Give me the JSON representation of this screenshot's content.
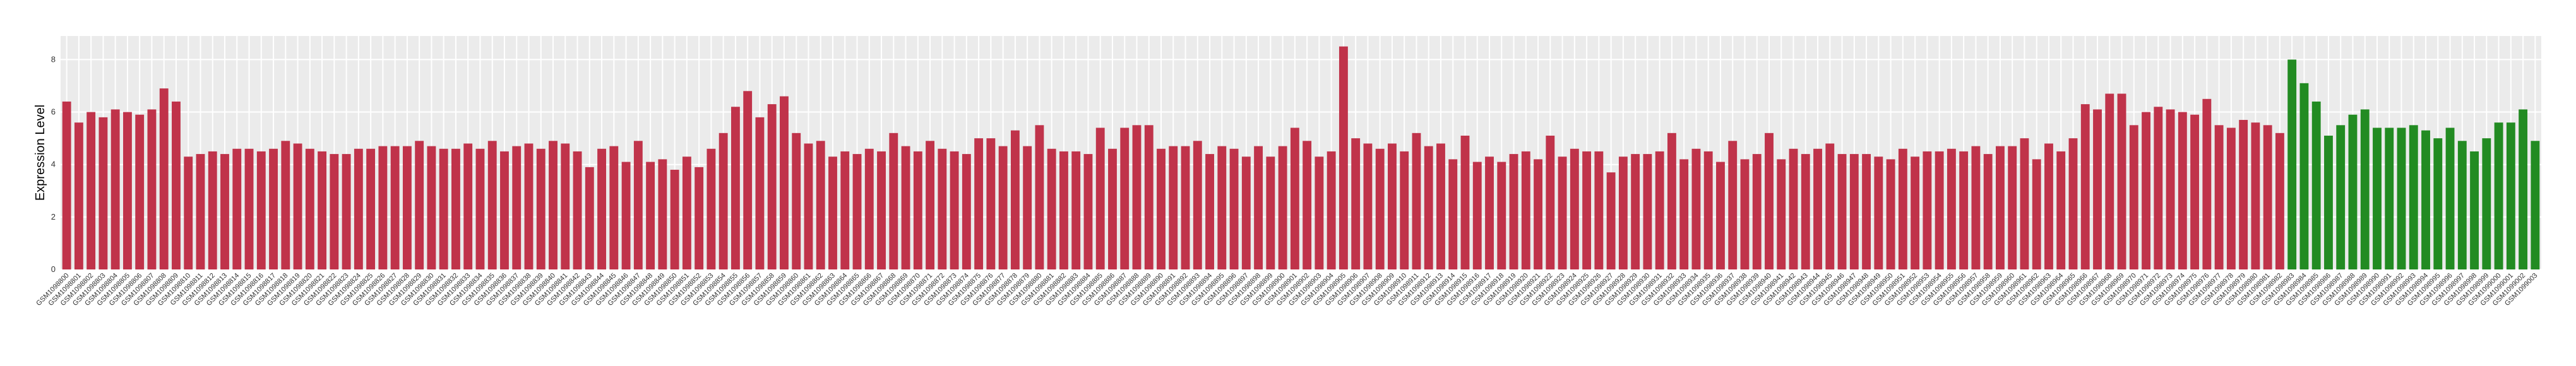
{
  "chart_data": {
    "type": "bar",
    "ylabel": "Expression Level",
    "ylim": [
      0,
      8.9
    ],
    "yticks": [
      0,
      2,
      4,
      6,
      8
    ],
    "grid": true,
    "groups": [
      {
        "color": "#c0334a",
        "categories": [
          "GSM1098800",
          "GSM1098801",
          "GSM1098802",
          "GSM1098803",
          "GSM1098804",
          "GSM1098805",
          "GSM1098806",
          "GSM1098807",
          "GSM1098808",
          "GSM1098809",
          "GSM1098810",
          "GSM1098811",
          "GSM1098812",
          "GSM1098813",
          "GSM1098814",
          "GSM1098815",
          "GSM1098816",
          "GSM1098817",
          "GSM1098818",
          "GSM1098819",
          "GSM1098820",
          "GSM1098821",
          "GSM1098822",
          "GSM1098823",
          "GSM1098824",
          "GSM1098825",
          "GSM1098826",
          "GSM1098827",
          "GSM1098828",
          "GSM1098829",
          "GSM1098830",
          "GSM1098831",
          "GSM1098832",
          "GSM1098833",
          "GSM1098834",
          "GSM1098835",
          "GSM1098836",
          "GSM1098837",
          "GSM1098838",
          "GSM1098839",
          "GSM1098840",
          "GSM1098841",
          "GSM1098842",
          "GSM1098843",
          "GSM1098844",
          "GSM1098845",
          "GSM1098846",
          "GSM1098847",
          "GSM1098848",
          "GSM1098849",
          "GSM1098850",
          "GSM1098851",
          "GSM1098852",
          "GSM1098853",
          "GSM1098854",
          "GSM1098855",
          "GSM1098856",
          "GSM1098857",
          "GSM1098858",
          "GSM1098859",
          "GSM1098860",
          "GSM1098861",
          "GSM1098862",
          "GSM1098863",
          "GSM1098864",
          "GSM1098865",
          "GSM1098866",
          "GSM1098867",
          "GSM1098868",
          "GSM1098869",
          "GSM1098870",
          "GSM1098871",
          "GSM1098872",
          "GSM1098873",
          "GSM1098874",
          "GSM1098875",
          "GSM1098876",
          "GSM1098877",
          "GSM1098878",
          "GSM1098879",
          "GSM1098880",
          "GSM1098881",
          "GSM1098882",
          "GSM1098883",
          "GSM1098884",
          "GSM1098885",
          "GSM1098886",
          "GSM1098887",
          "GSM1098888",
          "GSM1098889",
          "GSM1098890",
          "GSM1098891",
          "GSM1098892",
          "GSM1098893",
          "GSM1098894",
          "GSM1098895",
          "GSM1098896",
          "GSM1098897",
          "GSM1098898",
          "GSM1098899",
          "GSM1098900",
          "GSM1098901",
          "GSM1098902",
          "GSM1098903",
          "GSM1098904",
          "GSM1098905",
          "GSM1098906",
          "GSM1098907",
          "GSM1098908",
          "GSM1098909",
          "GSM1098910",
          "GSM1098911",
          "GSM1098912",
          "GSM1098913",
          "GSM1098914",
          "GSM1098915",
          "GSM1098916",
          "GSM1098917",
          "GSM1098918",
          "GSM1098919",
          "GSM1098920",
          "GSM1098921",
          "GSM1098922",
          "GSM1098923",
          "GSM1098924",
          "GSM1098925",
          "GSM1098926",
          "GSM1098927",
          "GSM1098928",
          "GSM1098929",
          "GSM1098930",
          "GSM1098931",
          "GSM1098932",
          "GSM1098933",
          "GSM1098934",
          "GSM1098935",
          "GSM1098936",
          "GSM1098937",
          "GSM1098938",
          "GSM1098939",
          "GSM1098940",
          "GSM1098941",
          "GSM1098942",
          "GSM1098943",
          "GSM1098944",
          "GSM1098945",
          "GSM1098946",
          "GSM1098947",
          "GSM1098948",
          "GSM1098949",
          "GSM1098950",
          "GSM1098951",
          "GSM1098952",
          "GSM1098953",
          "GSM1098954",
          "GSM1098955",
          "GSM1098956",
          "GSM1098957",
          "GSM1098958",
          "GSM1098959",
          "GSM1098960",
          "GSM1098961",
          "GSM1098962",
          "GSM1098963",
          "GSM1098964",
          "GSM1098965",
          "GSM1098966",
          "GSM1098967",
          "GSM1098968",
          "GSM1098969",
          "GSM1098970",
          "GSM1098971",
          "GSM1098972",
          "GSM1098973",
          "GSM1098974",
          "GSM1098975",
          "GSM1098976",
          "GSM1098977",
          "GSM1098978",
          "GSM1098979",
          "GSM1098980",
          "GSM1098981",
          "GSM1098982"
        ],
        "values": [
          6.4,
          5.6,
          6.0,
          5.8,
          6.1,
          6.0,
          5.9,
          6.1,
          6.9,
          6.4,
          4.3,
          4.4,
          4.5,
          4.4,
          4.6,
          4.6,
          4.5,
          4.6,
          4.9,
          4.8,
          4.6,
          4.5,
          4.4,
          4.4,
          4.6,
          4.6,
          4.7,
          4.7,
          4.7,
          4.9,
          4.7,
          4.6,
          4.6,
          4.8,
          4.6,
          4.9,
          4.5,
          4.7,
          4.8,
          4.6,
          4.9,
          4.8,
          4.5,
          3.9,
          4.6,
          4.7,
          4.1,
          4.9,
          4.1,
          4.2,
          3.8,
          4.3,
          3.9,
          4.6,
          5.2,
          6.2,
          6.8,
          5.8,
          6.3,
          6.6,
          5.2,
          4.8,
          4.9,
          4.3,
          4.5,
          4.4,
          4.6,
          4.5,
          5.2,
          4.7,
          4.5,
          4.9,
          4.6,
          4.5,
          4.4,
          5.0,
          5.0,
          4.7,
          5.3,
          4.7,
          5.5,
          4.6,
          4.5,
          4.5,
          4.4,
          5.4,
          4.6,
          5.4,
          5.5,
          5.5,
          4.6,
          4.7,
          4.7,
          4.9,
          4.4,
          4.7,
          4.6,
          4.3,
          4.7,
          4.3,
          4.7,
          5.4,
          4.9,
          4.3,
          4.5,
          8.5,
          5.0,
          4.8,
          4.6,
          4.8,
          4.5,
          5.2,
          4.7,
          4.8,
          4.2,
          5.1,
          4.1,
          4.3,
          4.1,
          4.4,
          4.5,
          4.2,
          5.1,
          4.3,
          4.6,
          4.5,
          4.5,
          3.7,
          4.3,
          4.4,
          4.4,
          4.5,
          5.2,
          4.2,
          4.6,
          4.5,
          4.1,
          4.9,
          4.2,
          4.4,
          5.2,
          4.2,
          4.6,
          4.4,
          4.6,
          4.8,
          4.4,
          4.4,
          4.4,
          4.3,
          4.2,
          4.6,
          4.3,
          4.5,
          4.5,
          4.6,
          4.5,
          4.7,
          4.4,
          4.7,
          4.7,
          5.0,
          4.2,
          4.8,
          4.5,
          5.0,
          6.3,
          6.1,
          6.7,
          6.7,
          5.5,
          6.0,
          6.2,
          6.1,
          6.0,
          5.9,
          6.5,
          5.5,
          5.4,
          5.7,
          5.6,
          5.5,
          5.2
        ]
      },
      {
        "color": "#228b22",
        "categories": [
          "GSM1098983",
          "GSM1098984",
          "GSM1098985",
          "GSM1098986",
          "GSM1098987",
          "GSM1098988",
          "GSM1098989",
          "GSM1098990",
          "GSM1098991",
          "GSM1098992",
          "GSM1098993",
          "GSM1098994",
          "GSM1098995",
          "GSM1098996",
          "GSM1098997",
          "GSM1098998",
          "GSM1098999",
          "GSM1099000",
          "GSM1099001",
          "GSM1099002",
          "GSM1099003"
        ],
        "values": [
          8.0,
          7.1,
          6.4,
          5.1,
          5.5,
          5.9,
          6.1,
          5.4,
          5.4,
          5.4,
          5.5,
          5.3,
          5.0,
          5.4,
          4.9,
          4.5,
          5.0,
          5.6,
          5.6,
          6.1,
          4.9
        ]
      }
    ]
  }
}
